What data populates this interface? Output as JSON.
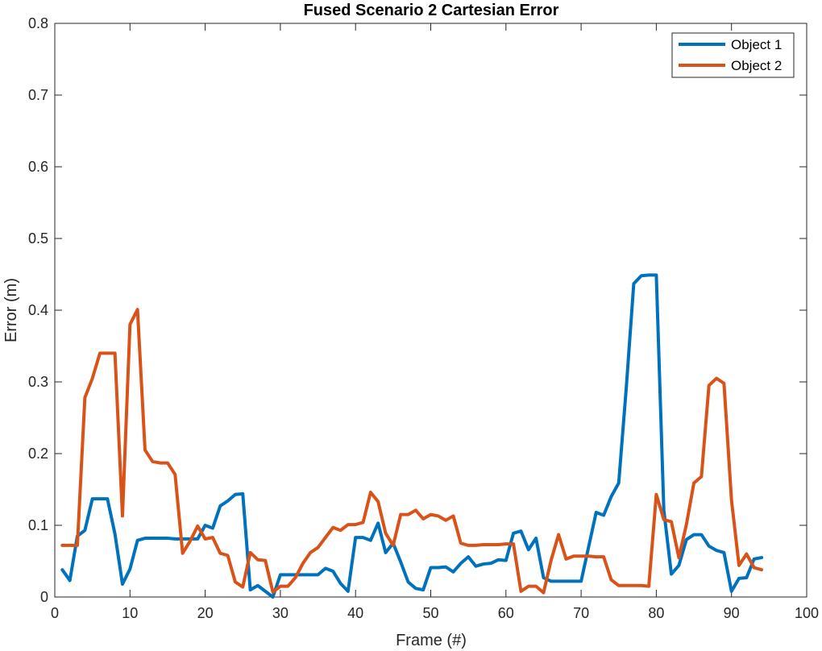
{
  "chart_data": {
    "type": "line",
    "title": "Fused Scenario 2 Cartesian Error",
    "xlabel": "Frame (#)",
    "ylabel": "Error (m)",
    "xlim": [
      0,
      100
    ],
    "ylim": [
      0,
      0.8
    ],
    "xticks": [
      0,
      10,
      20,
      30,
      40,
      50,
      60,
      70,
      80,
      90,
      100
    ],
    "yticks": [
      0,
      0.1,
      0.2,
      0.3,
      0.4,
      0.5,
      0.6,
      0.7,
      0.8
    ],
    "xtick_labels": [
      "0",
      "10",
      "20",
      "30",
      "40",
      "50",
      "60",
      "70",
      "80",
      "90",
      "100"
    ],
    "ytick_labels": [
      "0",
      "0.1",
      "0.2",
      "0.3",
      "0.4",
      "0.5",
      "0.6",
      "0.7",
      "0.8"
    ],
    "grid": false,
    "legend_position": "top-right",
    "x": [
      1,
      2,
      3,
      4,
      5,
      6,
      7,
      8,
      9,
      10,
      11,
      12,
      13,
      14,
      15,
      16,
      17,
      18,
      19,
      20,
      21,
      22,
      23,
      24,
      25,
      26,
      27,
      28,
      29,
      30,
      31,
      32,
      33,
      34,
      35,
      36,
      37,
      38,
      39,
      40,
      41,
      42,
      43,
      44,
      45,
      46,
      47,
      48,
      49,
      50,
      51,
      52,
      53,
      54,
      55,
      56,
      57,
      58,
      59,
      60,
      61,
      62,
      63,
      64,
      65,
      66,
      67,
      68,
      69,
      70,
      71,
      72,
      73,
      74,
      75,
      76,
      77,
      78,
      79,
      80,
      81,
      82,
      83,
      84,
      85,
      86,
      87,
      88,
      89,
      90,
      91,
      92,
      93,
      94
    ],
    "series": [
      {
        "name": "Object 1",
        "color": "#0072BD",
        "values": [
          0.038,
          0.023,
          0.085,
          0.093,
          0.137,
          0.137,
          0.137,
          0.088,
          0.018,
          0.039,
          0.079,
          0.082,
          0.082,
          0.082,
          0.082,
          0.081,
          0.081,
          0.081,
          0.081,
          0.1,
          0.096,
          0.127,
          0.134,
          0.143,
          0.144,
          0.01,
          0.016,
          0.008,
          0.0,
          0.031,
          0.031,
          0.031,
          0.031,
          0.031,
          0.031,
          0.04,
          0.036,
          0.019,
          0.008,
          0.083,
          0.083,
          0.079,
          0.103,
          0.062,
          0.075,
          0.049,
          0.021,
          0.012,
          0.01,
          0.041,
          0.041,
          0.042,
          0.035,
          0.047,
          0.056,
          0.043,
          0.046,
          0.047,
          0.052,
          0.051,
          0.089,
          0.092,
          0.066,
          0.082,
          0.027,
          0.022,
          0.022,
          0.022,
          0.022,
          0.022,
          0.07,
          0.118,
          0.114,
          0.14,
          0.159,
          0.291,
          0.437,
          0.448,
          0.449,
          0.449,
          0.121,
          0.032,
          0.044,
          0.08,
          0.087,
          0.087,
          0.071,
          0.065,
          0.062,
          0.008,
          0.026,
          0.027,
          0.053,
          0.055
        ]
      },
      {
        "name": "Object 2",
        "color": "#D95319",
        "values": [
          0.072,
          0.072,
          0.072,
          0.278,
          0.305,
          0.34,
          0.34,
          0.34,
          0.113,
          0.38,
          0.401,
          0.205,
          0.189,
          0.187,
          0.187,
          0.171,
          0.061,
          0.078,
          0.099,
          0.081,
          0.083,
          0.061,
          0.058,
          0.021,
          0.014,
          0.062,
          0.052,
          0.051,
          0.007,
          0.015,
          0.015,
          0.027,
          0.047,
          0.062,
          0.069,
          0.083,
          0.097,
          0.093,
          0.101,
          0.101,
          0.104,
          0.146,
          0.133,
          0.089,
          0.072,
          0.115,
          0.115,
          0.121,
          0.109,
          0.115,
          0.113,
          0.107,
          0.113,
          0.075,
          0.072,
          0.072,
          0.073,
          0.073,
          0.073,
          0.074,
          0.074,
          0.008,
          0.015,
          0.015,
          0.006,
          0.051,
          0.087,
          0.053,
          0.057,
          0.057,
          0.057,
          0.056,
          0.056,
          0.024,
          0.016,
          0.016,
          0.016,
          0.016,
          0.015,
          0.143,
          0.108,
          0.105,
          0.055,
          0.101,
          0.159,
          0.168,
          0.295,
          0.305,
          0.298,
          0.135,
          0.044,
          0.06,
          0.041,
          0.038
        ]
      }
    ]
  }
}
